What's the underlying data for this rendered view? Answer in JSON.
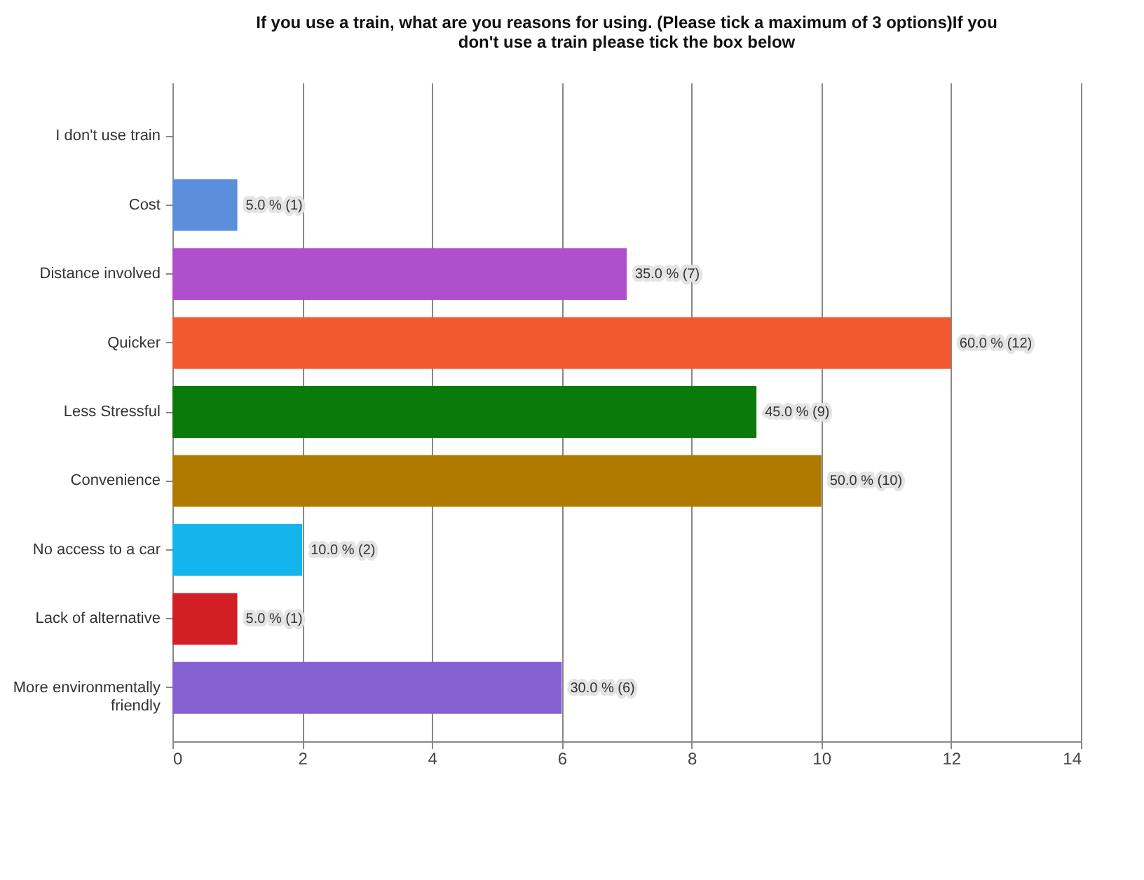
{
  "chart_data": {
    "type": "bar",
    "orientation": "horizontal",
    "title": "If you use a train, what are you reasons for using. (Please tick a maximum of 3 options)If you don't use a train please tick the box below",
    "categories": [
      "I don't use train",
      "Cost",
      "Distance involved",
      "Quicker",
      "Less Stressful",
      "Convenience",
      "No access to a car",
      "Lack of alternative",
      "More environmentally friendly"
    ],
    "values": [
      0,
      1,
      7,
      12,
      9,
      10,
      2,
      1,
      6
    ],
    "colors": [
      "#5b8fdc",
      "#5b8fdc",
      "#b04fcc",
      "#f05a2e",
      "#0a7a0a",
      "#b07a00",
      "#14b4ec",
      "#d41e26",
      "#8460d0"
    ],
    "value_labels": [
      null,
      "5.0 % (1)",
      "35.0 % (7)",
      "60.0 % (12)",
      "45.0 % (9)",
      "50.0 % (10)",
      "10.0 % (2)",
      "5.0 % (1)",
      "30.0 % (6)"
    ],
    "xlim": [
      0,
      14
    ],
    "xticks": [
      0,
      2,
      4,
      6,
      8,
      10,
      12,
      14
    ],
    "grid": "x"
  }
}
